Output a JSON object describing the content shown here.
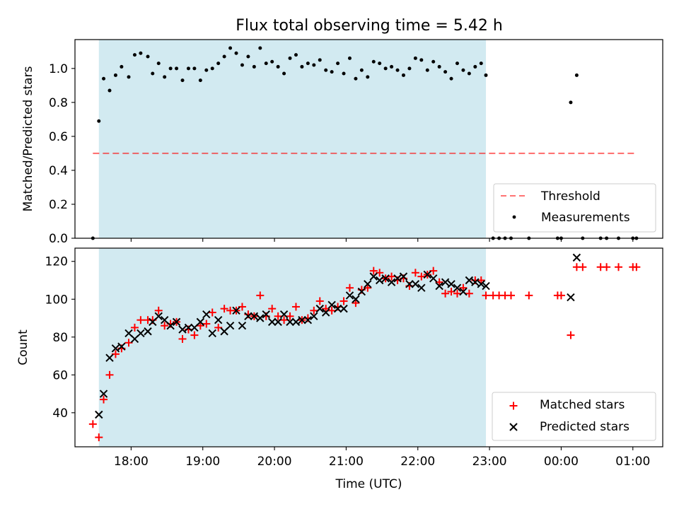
{
  "title": "Flux total observing time = 5.42 h",
  "colors": {
    "shade": "#add8e6",
    "threshold": "#ff0000",
    "measurements": "#000000",
    "matched": "#ff0000",
    "predicted": "#000000"
  },
  "chart_data": [
    {
      "type": "scatter",
      "ylabel": "Matched/Predicted stars",
      "ylim": [
        0,
        1.17
      ],
      "yticks": [
        0.0,
        0.2,
        0.4,
        0.6,
        0.8,
        1.0
      ],
      "ytick_labels": [
        "0.0",
        "0.2",
        "0.4",
        "0.6",
        "0.8",
        "1.0"
      ],
      "shaded_interval": [
        "17:33",
        "22:57"
      ],
      "threshold": {
        "name": "Threshold",
        "value": 0.5,
        "x_range": [
          "17:28",
          "25:03"
        ]
      },
      "legend": [
        "Threshold",
        "Measurements"
      ],
      "legend_position": "lower right",
      "series": [
        {
          "name": "Measurements",
          "x": [
            "17:28",
            "17:33",
            "17:37",
            "17:42",
            "17:47",
            "17:52",
            "17:58",
            "18:03",
            "18:08",
            "18:14",
            "18:18",
            "18:23",
            "18:28",
            "18:33",
            "18:38",
            "18:43",
            "18:48",
            "18:53",
            "18:58",
            "19:03",
            "19:08",
            "19:13",
            "19:18",
            "19:23",
            "19:28",
            "19:33",
            "19:38",
            "19:43",
            "19:48",
            "19:53",
            "19:58",
            "20:03",
            "20:08",
            "20:13",
            "20:18",
            "20:23",
            "20:28",
            "20:33",
            "20:38",
            "20:43",
            "20:48",
            "20:53",
            "20:58",
            "21:03",
            "21:08",
            "21:13",
            "21:18",
            "21:23",
            "21:28",
            "21:33",
            "21:38",
            "21:43",
            "21:48",
            "21:53",
            "21:58",
            "22:03",
            "22:08",
            "22:13",
            "22:18",
            "22:23",
            "22:28",
            "22:33",
            "22:38",
            "22:43",
            "22:48",
            "22:53",
            "22:57",
            "23:03",
            "23:08",
            "23:13",
            "23:18",
            "23:33",
            "23:57",
            "24:00",
            "24:08",
            "24:13",
            "24:18",
            "24:33",
            "24:38",
            "24:48",
            "25:00",
            "25:03"
          ],
          "y": [
            0.0,
            0.69,
            0.94,
            0.87,
            0.96,
            1.01,
            0.95,
            1.08,
            1.09,
            1.07,
            0.97,
            1.03,
            0.95,
            1.0,
            1.0,
            0.93,
            1.0,
            1.0,
            0.93,
            0.99,
            1.0,
            1.03,
            1.07,
            1.12,
            1.09,
            1.02,
            1.07,
            1.01,
            1.12,
            1.03,
            1.04,
            1.01,
            0.97,
            1.06,
            1.08,
            1.01,
            1.03,
            1.02,
            1.05,
            0.99,
            0.98,
            1.03,
            0.97,
            1.06,
            0.94,
            0.99,
            0.95,
            1.04,
            1.03,
            1.0,
            1.01,
            0.99,
            0.96,
            1.0,
            1.06,
            1.05,
            0.99,
            1.04,
            1.01,
            0.98,
            0.94,
            1.03,
            0.99,
            0.97,
            1.01,
            1.03,
            0.96,
            0.0,
            0.0,
            0.0,
            0.0,
            0.0,
            0.0,
            0.0,
            0.8,
            0.96,
            0.0,
            0.0,
            0.0,
            0.0,
            0.0,
            0.0
          ]
        }
      ]
    },
    {
      "type": "scatter",
      "ylabel": "Count",
      "xlabel": "Time (UTC)",
      "ylim": [
        22,
        127
      ],
      "yticks": [
        40,
        60,
        80,
        100,
        120
      ],
      "ytick_labels": [
        "40",
        "60",
        "80",
        "100",
        "120"
      ],
      "xlim": [
        "17:13",
        "25:25"
      ],
      "xticks": [
        "18:00",
        "19:00",
        "20:00",
        "21:00",
        "22:00",
        "23:00",
        "24:00",
        "25:00"
      ],
      "xtick_labels": [
        "18:00",
        "19:00",
        "20:00",
        "21:00",
        "22:00",
        "23:00",
        "00:00",
        "01:00"
      ],
      "shaded_interval": [
        "17:33",
        "22:57"
      ],
      "legend": [
        "Matched stars",
        "Predicted stars"
      ],
      "legend_position": "lower right",
      "series": [
        {
          "name": "Matched stars",
          "marker": "+",
          "x": [
            "17:28",
            "17:33",
            "17:37",
            "17:42",
            "17:47",
            "17:52",
            "17:58",
            "18:03",
            "18:08",
            "18:14",
            "18:18",
            "18:23",
            "18:28",
            "18:33",
            "18:38",
            "18:43",
            "18:48",
            "18:53",
            "18:58",
            "19:03",
            "19:08",
            "19:13",
            "19:18",
            "19:23",
            "19:28",
            "19:33",
            "19:38",
            "19:43",
            "19:48",
            "19:53",
            "19:58",
            "20:03",
            "20:08",
            "20:13",
            "20:18",
            "20:23",
            "20:28",
            "20:33",
            "20:38",
            "20:43",
            "20:48",
            "20:53",
            "20:58",
            "21:03",
            "21:08",
            "21:13",
            "21:18",
            "21:23",
            "21:28",
            "21:33",
            "21:38",
            "21:43",
            "21:48",
            "21:53",
            "21:58",
            "22:03",
            "22:08",
            "22:13",
            "22:18",
            "22:23",
            "22:28",
            "22:33",
            "22:38",
            "22:43",
            "22:48",
            "22:53",
            "22:57",
            "23:03",
            "23:08",
            "23:13",
            "23:18",
            "23:33",
            "23:57",
            "24:00",
            "24:08",
            "24:13",
            "24:18",
            "24:33",
            "24:38",
            "24:48",
            "25:00",
            "25:03"
          ],
          "y": [
            34,
            27,
            47,
            60,
            71,
            74,
            77,
            85,
            89,
            89,
            89,
            94,
            86,
            87,
            88,
            79,
            84,
            81,
            86,
            87,
            93,
            85,
            95,
            94,
            94,
            96,
            92,
            91,
            102,
            91,
            95,
            91,
            89,
            91,
            96,
            89,
            90,
            94,
            99,
            95,
            94,
            96,
            99,
            106,
            98,
            105,
            106,
            115,
            114,
            111,
            112,
            110,
            111,
            107,
            114,
            112,
            113,
            115,
            109,
            103,
            104,
            103,
            106,
            103,
            110,
            110,
            102,
            102,
            102,
            102,
            102,
            102,
            102,
            102,
            81,
            117,
            117,
            117,
            117,
            117,
            117,
            117
          ]
        },
        {
          "name": "Predicted stars",
          "marker": "x",
          "x": [
            "17:33",
            "17:37",
            "17:42",
            "17:47",
            "17:52",
            "17:58",
            "18:03",
            "18:08",
            "18:14",
            "18:18",
            "18:23",
            "18:28",
            "18:33",
            "18:38",
            "18:43",
            "18:48",
            "18:53",
            "18:58",
            "19:03",
            "19:08",
            "19:13",
            "19:18",
            "19:23",
            "19:28",
            "19:33",
            "19:38",
            "19:43",
            "19:48",
            "19:53",
            "19:58",
            "20:03",
            "20:08",
            "20:13",
            "20:18",
            "20:23",
            "20:28",
            "20:33",
            "20:38",
            "20:43",
            "20:48",
            "20:53",
            "20:58",
            "21:03",
            "21:08",
            "21:13",
            "21:18",
            "21:23",
            "21:28",
            "21:33",
            "21:38",
            "21:43",
            "21:48",
            "21:53",
            "21:58",
            "22:03",
            "22:08",
            "22:13",
            "22:18",
            "22:23",
            "22:28",
            "22:33",
            "22:38",
            "22:43",
            "22:48",
            "22:53",
            "22:57",
            "24:08",
            "24:13"
          ],
          "y": [
            39,
            50,
            69,
            74,
            75,
            82,
            79,
            82,
            83,
            88,
            91,
            89,
            86,
            88,
            84,
            85,
            85,
            88,
            92,
            82,
            89,
            83,
            86,
            94,
            86,
            91,
            91,
            90,
            92,
            88,
            88,
            92,
            88,
            88,
            89,
            89,
            91,
            95,
            93,
            97,
            95,
            95,
            102,
            100,
            104,
            108,
            112,
            110,
            111,
            109,
            111,
            112,
            108,
            108,
            106,
            113,
            111,
            107,
            109,
            108,
            106,
            104,
            110,
            109,
            108,
            107,
            101,
            122
          ]
        }
      ]
    }
  ]
}
